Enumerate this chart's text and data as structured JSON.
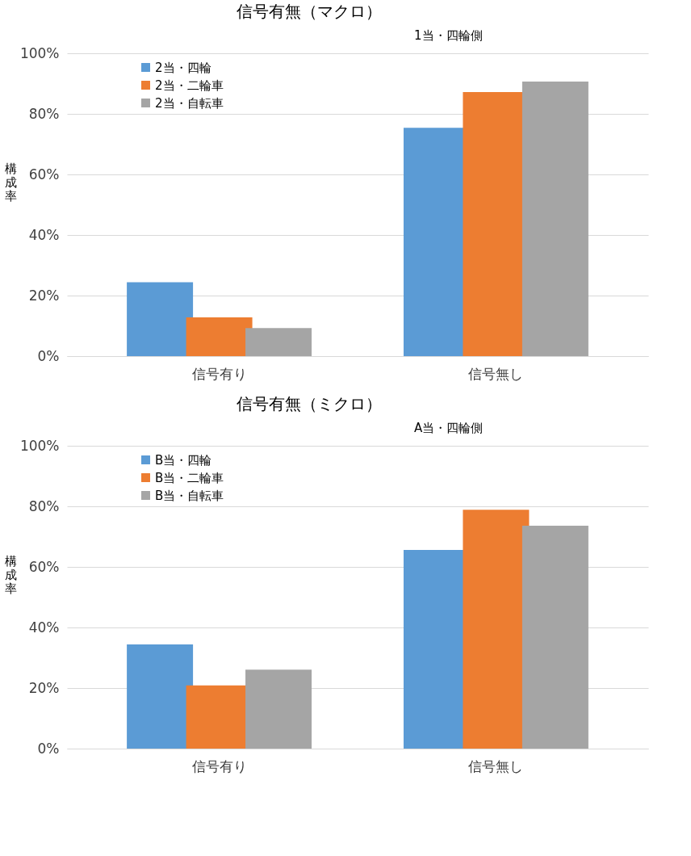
{
  "chart_data": [
    {
      "type": "bar",
      "title": "信号有無（マクロ）",
      "subtitle": "1当・四輪側",
      "ylabel": "構成率",
      "categories": [
        "信号有り",
        "信号無し"
      ],
      "series": [
        {
          "name": "2当・四輪",
          "color": "#5b9bd5",
          "values": [
            24.4,
            75.4
          ]
        },
        {
          "name": "2当・二輪車",
          "color": "#ed7d31",
          "values": [
            12.8,
            87.2
          ]
        },
        {
          "name": "2当・自転車",
          "color": "#a5a5a5",
          "values": [
            9.3,
            90.7
          ]
        }
      ],
      "ylim": [
        0,
        100
      ],
      "yticks": [
        {
          "value": 0,
          "label": "0%"
        },
        {
          "value": 20,
          "label": "20%"
        },
        {
          "value": 40,
          "label": "40%"
        },
        {
          "value": 60,
          "label": "60%"
        },
        {
          "value": 80,
          "label": "80%"
        },
        {
          "value": 100,
          "label": "100%"
        }
      ],
      "grid": "y",
      "legend": "top left"
    },
    {
      "type": "bar",
      "title": "信号有無（ミクロ）",
      "subtitle": "A当・四輪側",
      "ylabel": "構成率",
      "categories": [
        "信号有り",
        "信号無し"
      ],
      "series": [
        {
          "name": "B当・四輪",
          "color": "#5b9bd5",
          "values": [
            34.4,
            65.6
          ]
        },
        {
          "name": "B当・二輪車",
          "color": "#ed7d31",
          "values": [
            20.9,
            78.9
          ]
        },
        {
          "name": "B当・自転車",
          "color": "#a5a5a5",
          "values": [
            26.1,
            73.6
          ]
        }
      ],
      "ylim": [
        0,
        100
      ],
      "yticks": [
        {
          "value": 0,
          "label": "0%"
        },
        {
          "value": 20,
          "label": "20%"
        },
        {
          "value": 40,
          "label": "40%"
        },
        {
          "value": 60,
          "label": "60%"
        },
        {
          "value": 80,
          "label": "80%"
        },
        {
          "value": 100,
          "label": "100%"
        }
      ],
      "grid": "y",
      "legend": "top left"
    }
  ]
}
